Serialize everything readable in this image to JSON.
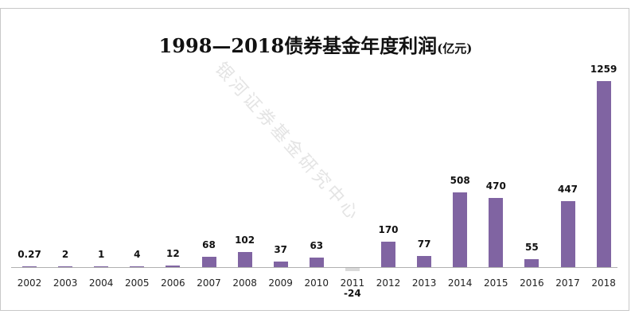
{
  "chart_data": {
    "type": "bar",
    "title": "1998—2018债券基金年度利润",
    "title_unit": "(亿元)",
    "xlabel": "",
    "ylabel": "",
    "categories": [
      "2002",
      "2003",
      "2004",
      "2005",
      "2006",
      "2007",
      "2008",
      "2009",
      "2010",
      "2011",
      "2012",
      "2013",
      "2014",
      "2015",
      "2016",
      "2017",
      "2018"
    ],
    "values": [
      0.27,
      2,
      1,
      4,
      12,
      68,
      102,
      37,
      63,
      -24,
      170,
      77,
      508,
      470,
      55,
      447,
      1259
    ],
    "value_labels": [
      "0.27",
      "2",
      "1",
      "4",
      "12",
      "68",
      "102",
      "37",
      "63",
      "-24",
      "170",
      "77",
      "508",
      "470",
      "55",
      "447",
      "1259"
    ],
    "colors": {
      "positive": "#8064a2",
      "negative": "#d9d9d9"
    },
    "grid": false,
    "legend": "none"
  },
  "watermark": "银河证券基金研究中心"
}
